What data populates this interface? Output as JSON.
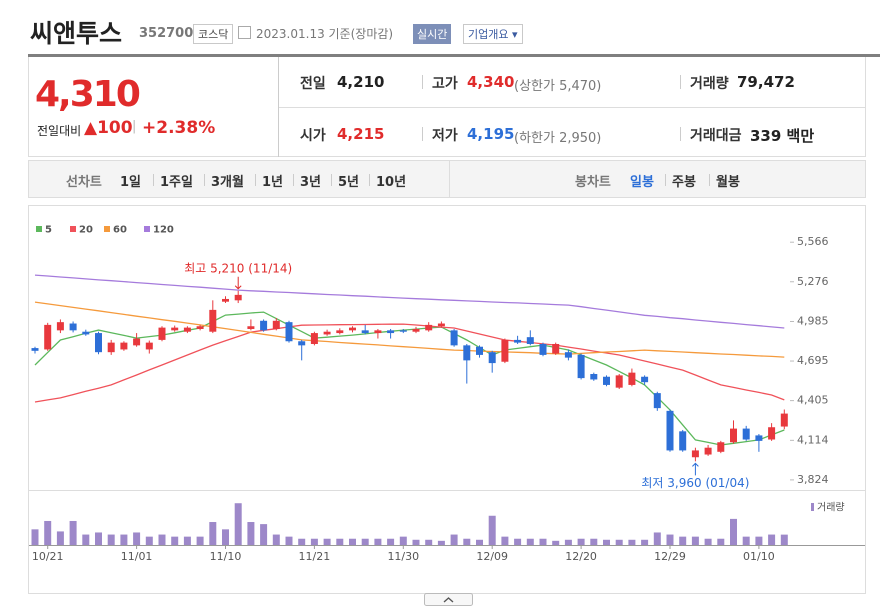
{
  "header": {
    "name": "씨앤투스",
    "code": "352700",
    "market": "코스닥",
    "date": "2023.01.13 기준(장마감)",
    "realtime": "실시간",
    "company_info": "기업개요"
  },
  "quote": {
    "price": "4,310",
    "change_label": "전일대비",
    "change": "▲100",
    "change_rate": "+2.38%",
    "rows": [
      [
        {
          "label": "전일",
          "value": "4,210"
        },
        {
          "label": "고가",
          "value": "4,340",
          "note": "(상한가 5,470)"
        },
        {
          "label": "거래량",
          "value": "79,472"
        }
      ],
      [
        {
          "label": "시가",
          "value": "4,215"
        },
        {
          "label": "저가",
          "value": "4,195",
          "note": "(하한가 2,950)"
        },
        {
          "label": "거래대금",
          "value": "339 백만"
        }
      ]
    ]
  },
  "tabs": {
    "line_chart": "선차트",
    "periods": [
      "1일",
      "1주일",
      "3개월",
      "1년",
      "3년",
      "5년",
      "10년"
    ],
    "candle_chart": "봉차트",
    "candle_periods": [
      "일봉",
      "주봉",
      "월봉"
    ]
  },
  "chart_data": {
    "type": "candlestick",
    "categories": [
      null,
      "10/21",
      null,
      null,
      null,
      null,
      null,
      null,
      "11/01",
      null,
      null,
      null,
      null,
      null,
      null,
      "11/10",
      null,
      null,
      null,
      null,
      null,
      null,
      "11/21",
      null,
      null,
      null,
      null,
      null,
      null,
      "11/30",
      null,
      null,
      null,
      null,
      null,
      null,
      "12/09",
      null,
      null,
      null,
      null,
      null,
      null,
      "12/20",
      null,
      null,
      null,
      null,
      null,
      null,
      "12/29",
      null,
      null,
      null,
      null,
      null,
      null,
      "01/10",
      null,
      null
    ],
    "open": [
      4790,
      4780,
      4920,
      4970,
      4910,
      4900,
      4760,
      4780,
      4810,
      4780,
      4850,
      4920,
      4910,
      4930,
      4910,
      5130,
      5140,
      4930,
      4990,
      4930,
      4980,
      4840,
      4820,
      4890,
      4900,
      4920,
      4920,
      4900,
      4920,
      4920,
      4910,
      4920,
      4950,
      4920,
      4810,
      4800,
      4760,
      4690,
      4850,
      4870,
      4820,
      4750,
      4760,
      4740,
      4600,
      4580,
      4500,
      4520,
      4580,
      4460,
      4330,
      4180,
      3990,
      4010,
      4030,
      4100,
      4200,
      4150,
      4120,
      4215
    ],
    "high": [
      4800,
      4975,
      5000,
      4985,
      4925,
      4910,
      4850,
      4840,
      4900,
      4845,
      4950,
      4955,
      4950,
      4960,
      5140,
      5170,
      5210,
      5000,
      5000,
      5010,
      4990,
      4850,
      4910,
      4925,
      4935,
      4950,
      4960,
      4930,
      4930,
      4930,
      4945,
      4980,
      4985,
      4930,
      4820,
      4810,
      4770,
      4860,
      4880,
      4920,
      4830,
      4830,
      4780,
      4750,
      4610,
      4590,
      4600,
      4640,
      4590,
      4470,
      4340,
      4190,
      4060,
      4080,
      4110,
      4260,
      4220,
      4160,
      4240,
      4340
    ],
    "low": [
      4750,
      4770,
      4900,
      4905,
      4880,
      4745,
      4740,
      4770,
      4800,
      4750,
      4840,
      4910,
      4900,
      4920,
      4900,
      5120,
      5120,
      4920,
      4910,
      4920,
      4830,
      4700,
      4810,
      4880,
      4890,
      4905,
      4890,
      4860,
      4860,
      4900,
      4900,
      4910,
      4940,
      4800,
      4530,
      4720,
      4610,
      4680,
      4820,
      4810,
      4730,
      4740,
      4700,
      4560,
      4550,
      4510,
      4490,
      4510,
      4520,
      4330,
      4030,
      4030,
      3960,
      4000,
      4020,
      4090,
      4110,
      4030,
      4110,
      4195
    ],
    "close": [
      4770,
      4960,
      4980,
      4920,
      4890,
      4760,
      4830,
      4830,
      4860,
      4830,
      4940,
      4940,
      4940,
      4950,
      5070,
      5150,
      5180,
      4950,
      4920,
      4990,
      4840,
      4810,
      4900,
      4910,
      4920,
      4940,
      4900,
      4920,
      4900,
      4910,
      4930,
      4960,
      4970,
      4810,
      4700,
      4740,
      4680,
      4850,
      4830,
      4820,
      4740,
      4820,
      4720,
      4570,
      4560,
      4520,
      4590,
      4610,
      4540,
      4350,
      4040,
      4040,
      4040,
      4060,
      4100,
      4200,
      4120,
      4110,
      4210,
      4310
    ],
    "up_color": "#e8383d",
    "down_color": "#2d6fd7",
    "ylim": [
      3750,
      5670
    ],
    "yticks": [
      {
        "value": 5566,
        "label": "5,566"
      },
      {
        "value": 5276,
        "label": "5,276"
      },
      {
        "value": 4985,
        "label": "4,985"
      },
      {
        "value": 4695,
        "label": "4,695"
      },
      {
        "value": 4405,
        "label": "4,405"
      },
      {
        "value": 4114,
        "label": "4,114"
      },
      {
        "value": 3824,
        "label": "3,824"
      }
    ],
    "grid": false,
    "moving_averages": [
      {
        "name": "5",
        "color": "#5cb85c",
        "values": [
          4666,
          4758,
          4849,
          4873,
          4898,
          4922,
          4902,
          4883,
          4863,
          4874,
          4885,
          4902,
          4920,
          4937,
          4985,
          5032,
          5039,
          5047,
          5054,
          5006,
          4958,
          4911,
          4863,
          4870,
          4878,
          4885,
          4894,
          4904,
          4913,
          4922,
          4929,
          4937,
          4944,
          4897,
          4849,
          4794,
          4739,
          4776,
          4788,
          4800,
          4812,
          4794,
          4776,
          4739,
          4703,
          4666,
          4619,
          4571,
          4520,
          4429,
          4337,
          4227,
          4117,
          4099,
          4080,
          4092,
          4105,
          4117,
          4154,
          4190
        ]
      },
      {
        "name": "20",
        "color": "#f0525a",
        "values": [
          4395,
          4410,
          4425,
          4449,
          4473,
          4496,
          4520,
          4557,
          4593,
          4630,
          4666,
          4703,
          4739,
          4776,
          4812,
          4844,
          4875,
          4907,
          4920,
          4932,
          4945,
          4958,
          4959,
          4960,
          4961,
          4962,
          4963,
          4964,
          4965,
          4966,
          4959,
          4952,
          4944,
          4937,
          4915,
          4893,
          4871,
          4849,
          4840,
          4831,
          4821,
          4812,
          4797,
          4783,
          4768,
          4754,
          4739,
          4717,
          4695,
          4673,
          4651,
          4629,
          4593,
          4556,
          4520,
          4502,
          4483,
          4465,
          4446,
          4410
        ]
      },
      {
        "name": "60",
        "color": "#f59a3c",
        "values": [
          5127,
          5114,
          5101,
          5088,
          5076,
          5063,
          5050,
          5037,
          5024,
          5011,
          4998,
          4986,
          4973,
          4960,
          4946,
          4933,
          4919,
          4905,
          4891,
          4878,
          4864,
          4850,
          4844,
          4838,
          4831,
          4825,
          4819,
          4813,
          4806,
          4800,
          4794,
          4788,
          4781,
          4775,
          4772,
          4768,
          4765,
          4762,
          4759,
          4756,
          4752,
          4749,
          4746,
          4751,
          4756,
          4761,
          4765,
          4770,
          4775,
          4770,
          4766,
          4761,
          4756,
          4752,
          4747,
          4743,
          4738,
          4733,
          4729,
          4724
        ]
      },
      {
        "name": "120",
        "color": "#a57bdc",
        "values": [
          5325,
          5318,
          5311,
          5304,
          5297,
          5290,
          5284,
          5277,
          5270,
          5263,
          5256,
          5249,
          5242,
          5236,
          5229,
          5222,
          5215,
          5210,
          5206,
          5201,
          5197,
          5192,
          5188,
          5183,
          5179,
          5174,
          5170,
          5165,
          5161,
          5156,
          5152,
          5148,
          5144,
          5140,
          5136,
          5132,
          5128,
          5124,
          5121,
          5117,
          5113,
          5109,
          5105,
          5093,
          5080,
          5068,
          5055,
          5043,
          5030,
          5022,
          5013,
          5005,
          4996,
          4988,
          4979,
          4971,
          4962,
          4954,
          4945,
          4937
        ]
      }
    ],
    "volume": {
      "name": "거래량",
      "color": "#9d88c9",
      "ylim": [
        0,
        360000
      ],
      "values": [
        120000,
        184000,
        104000,
        184000,
        80000,
        96000,
        80000,
        80000,
        96000,
        64000,
        80000,
        64000,
        64000,
        64000,
        176000,
        120000,
        320000,
        176000,
        160000,
        80000,
        64000,
        48000,
        48000,
        48000,
        48000,
        48000,
        48000,
        48000,
        48000,
        64000,
        40000,
        40000,
        32000,
        80000,
        48000,
        40000,
        224000,
        64000,
        48000,
        48000,
        48000,
        32000,
        40000,
        48000,
        48000,
        40000,
        40000,
        40000,
        40000,
        96000,
        80000,
        64000,
        64000,
        48000,
        48000,
        200000,
        64000,
        64000,
        80000,
        79472
      ]
    },
    "annotations": [
      {
        "text": "최고 5,210 (11/14)",
        "value": 5210
      },
      {
        "text": "최저 3,960 (01/04)",
        "value": 3960
      }
    ]
  }
}
